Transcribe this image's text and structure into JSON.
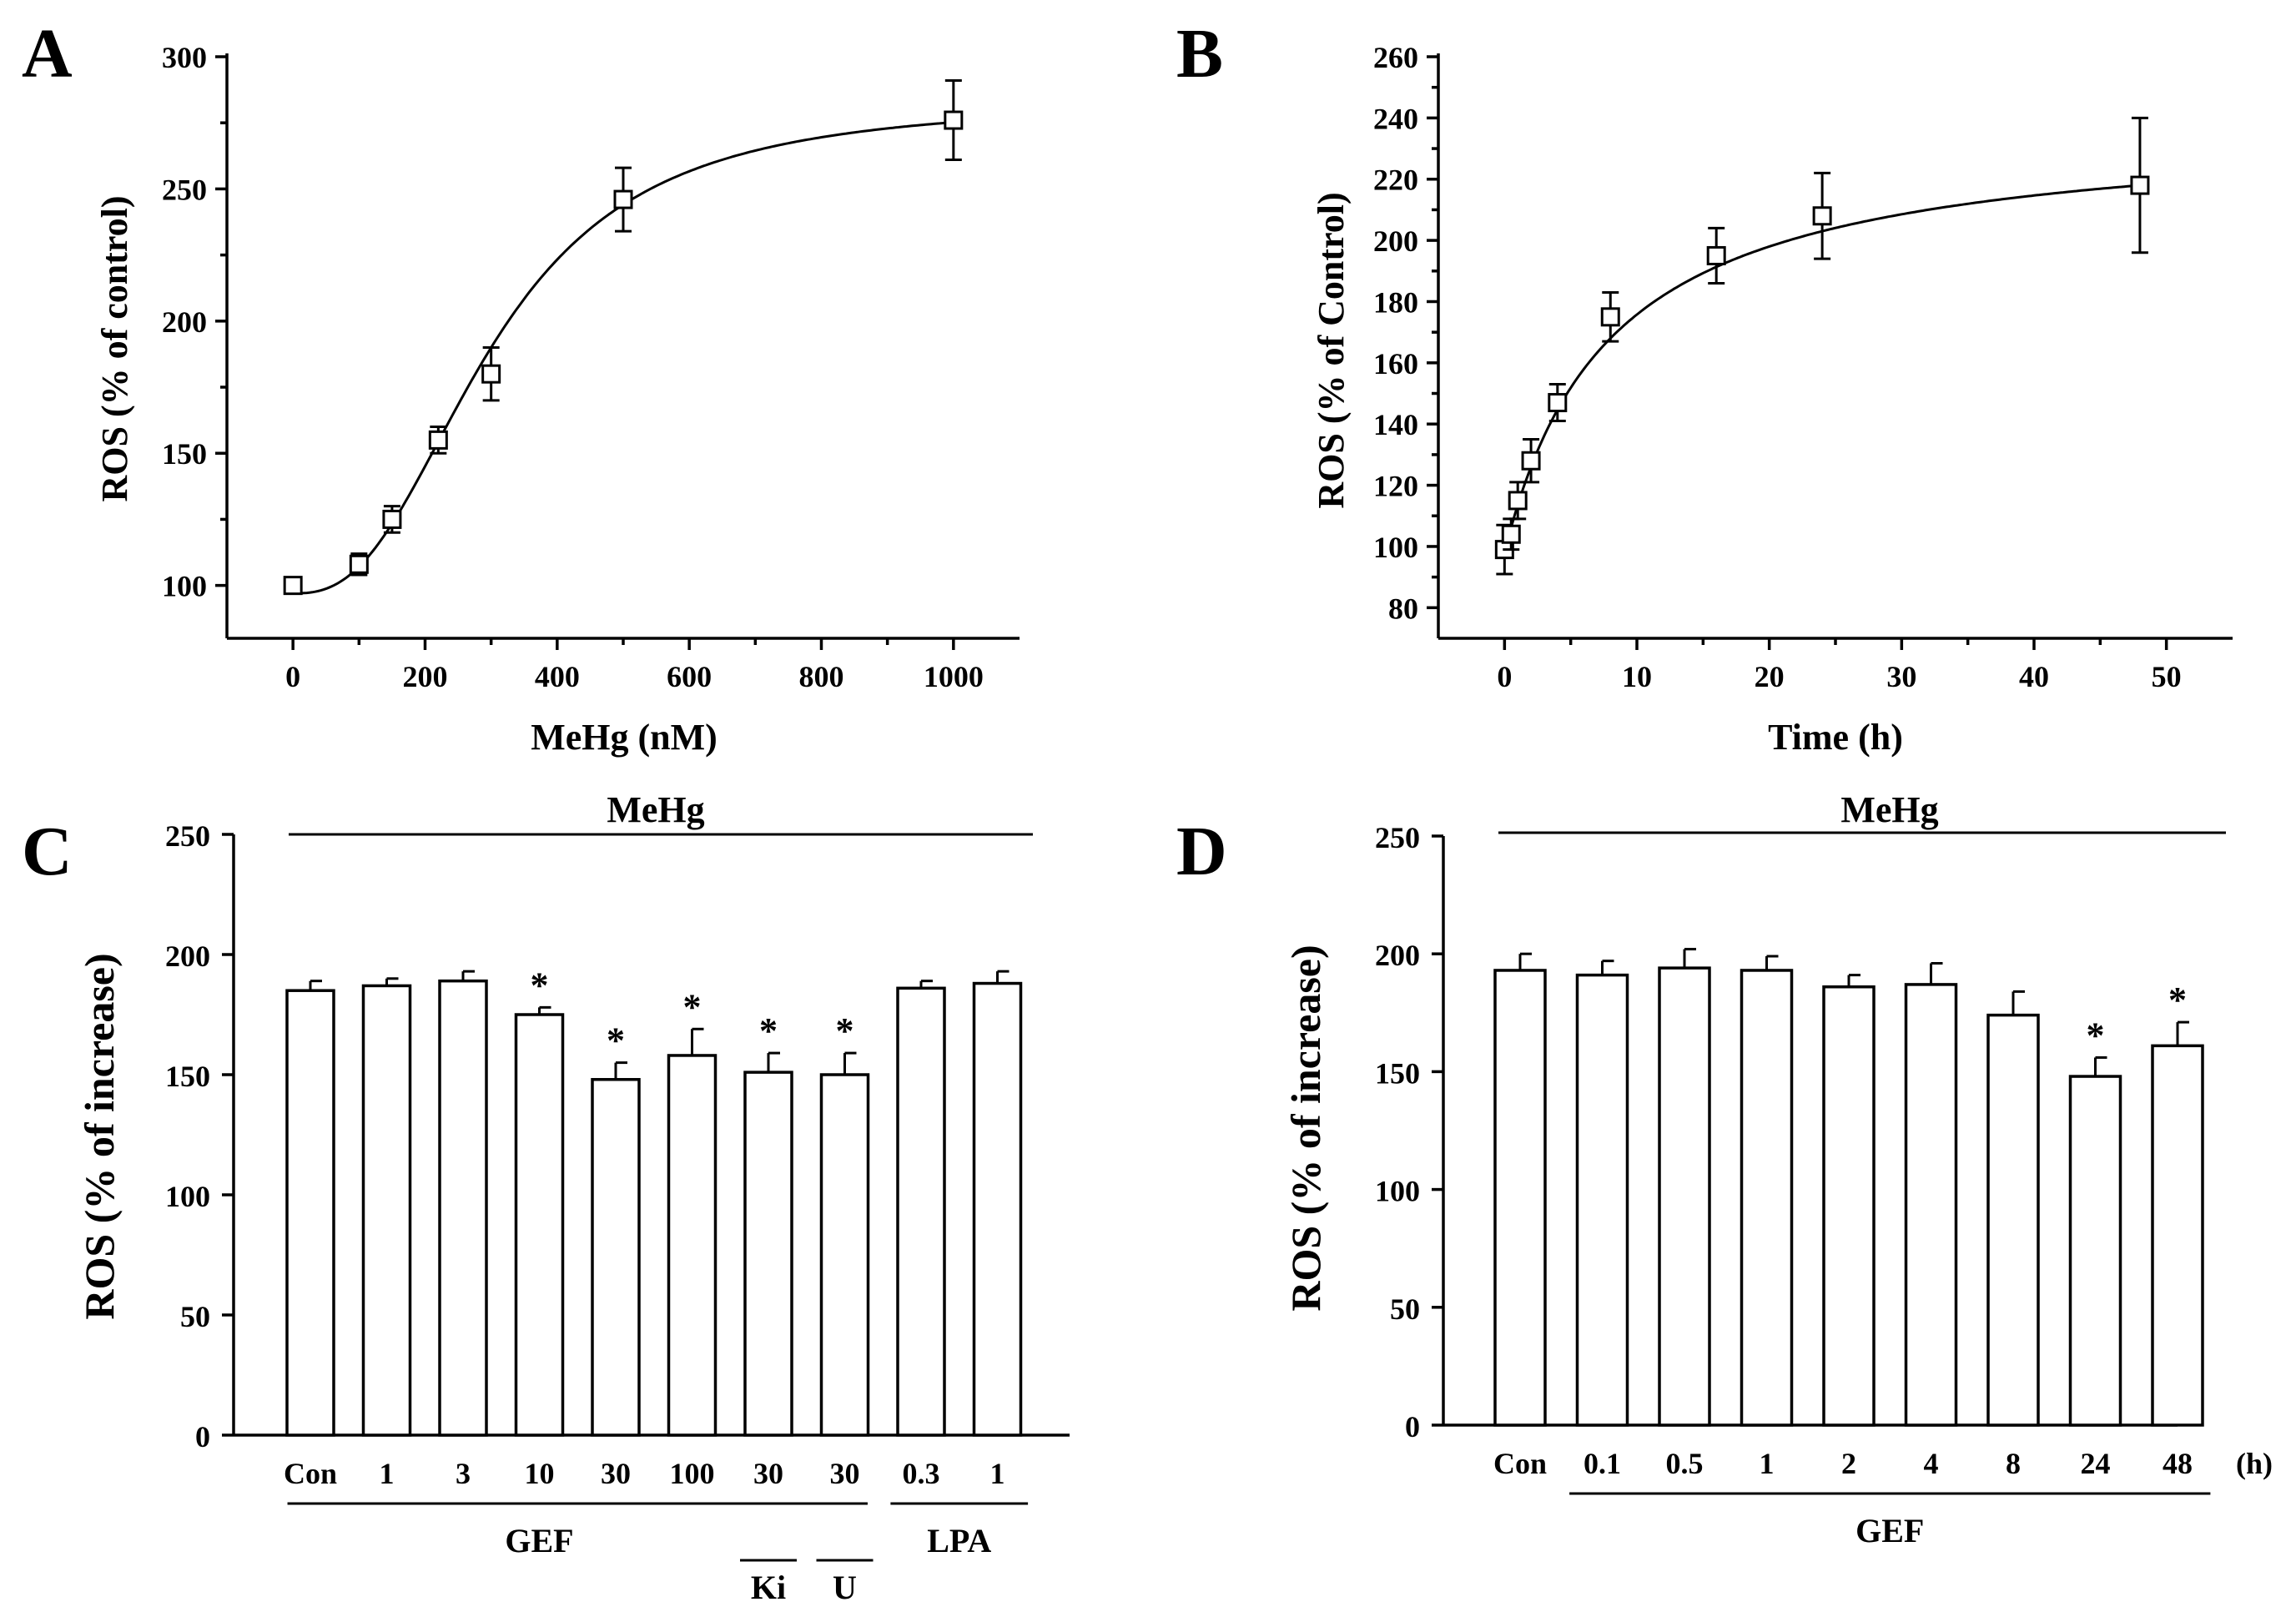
{
  "chart_data": [
    {
      "panel": "A",
      "type": "scatter",
      "xlabel": "MeHg (nM)",
      "ylabel": "ROS (% of control)",
      "xlim": [
        -100,
        1100
      ],
      "ylim": [
        80,
        300
      ],
      "xticks": [
        0,
        200,
        400,
        600,
        800,
        1000
      ],
      "yticks": [
        100,
        150,
        200,
        250,
        300
      ],
      "x": [
        0,
        100,
        150,
        220,
        300,
        500,
        1000
      ],
      "y": [
        100,
        108,
        125,
        155,
        180,
        246,
        276
      ],
      "err": [
        2,
        4,
        5,
        5,
        10,
        12,
        15
      ],
      "fit": "sigmoid",
      "fit_params": {
        "bottom": 97,
        "top": 283,
        "x50": 300,
        "slope": 2.6
      },
      "marker": "open-square"
    },
    {
      "panel": "B",
      "type": "scatter",
      "xlabel": "Time (h)",
      "ylabel": "ROS (% of Control)",
      "xlim": [
        -5,
        55
      ],
      "ylim": [
        70,
        260
      ],
      "xticks": [
        0,
        10,
        20,
        30,
        40,
        50
      ],
      "yticks": [
        80,
        100,
        120,
        140,
        160,
        180,
        200,
        220,
        240,
        260
      ],
      "x": [
        0,
        0.5,
        1,
        2,
        4,
        8,
        16,
        24,
        48
      ],
      "y": [
        99,
        104,
        115,
        128,
        147,
        175,
        195,
        208,
        218
      ],
      "err": [
        8,
        5,
        6,
        7,
        6,
        8,
        9,
        14,
        22
      ],
      "fit": "hyperbolic",
      "fit_params": {
        "y0": 98,
        "max": 140,
        "k": 8
      },
      "marker": "open-square"
    },
    {
      "panel": "C",
      "type": "bar",
      "ylabel": "ROS (% of increase)",
      "ylim": [
        0,
        250
      ],
      "yticks": [
        0,
        50,
        100,
        150,
        200,
        250
      ],
      "categories": [
        "Con",
        "1",
        "3",
        "10",
        "30",
        "100",
        "30",
        "30",
        "0.3",
        "1"
      ],
      "values": [
        185,
        187,
        189,
        175,
        148,
        158,
        151,
        150,
        186,
        188
      ],
      "err": [
        4,
        3,
        4,
        3,
        7,
        11,
        8,
        9,
        3,
        5
      ],
      "significant": [
        false,
        false,
        false,
        true,
        true,
        true,
        true,
        true,
        false,
        false
      ],
      "top_label": "MeHg",
      "groups": [
        {
          "label": "GEF",
          "from": 0,
          "to": 7
        },
        {
          "label": "Ki",
          "from": 6,
          "to": 6
        },
        {
          "label": "U",
          "from": 7,
          "to": 7
        },
        {
          "label": "LPA",
          "from": 8,
          "to": 9
        }
      ]
    },
    {
      "panel": "D",
      "type": "bar",
      "ylabel": "ROS (% of increase)",
      "ylim": [
        0,
        250
      ],
      "yticks": [
        0,
        50,
        100,
        150,
        200,
        250
      ],
      "categories": [
        "Con",
        "0.1",
        "0.5",
        "1",
        "2",
        "4",
        "8",
        "24",
        "48"
      ],
      "unit_label": "(h)",
      "values": [
        193,
        191,
        194,
        193,
        186,
        187,
        174,
        148,
        161
      ],
      "err": [
        7,
        6,
        8,
        6,
        5,
        9,
        10,
        8,
        10
      ],
      "significant": [
        false,
        false,
        false,
        false,
        false,
        false,
        false,
        true,
        true
      ],
      "top_label": "MeHg",
      "groups": [
        {
          "label": "GEF",
          "from": 1,
          "to": 8
        }
      ]
    }
  ]
}
